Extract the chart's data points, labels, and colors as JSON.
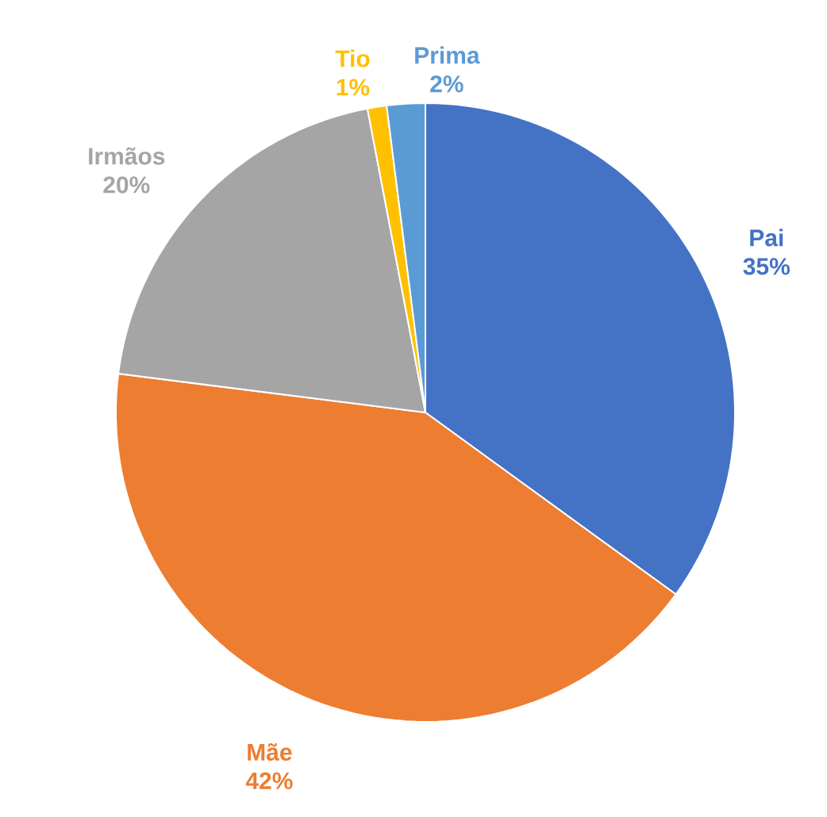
{
  "chart_data": {
    "type": "pie",
    "categories": [
      "Pai",
      "Mãe",
      "Irmãos",
      "Tio",
      "Prima"
    ],
    "values": [
      35,
      42,
      20,
      1,
      2
    ],
    "value_labels": [
      "35%",
      "42%",
      "20%",
      "1%",
      "2%"
    ],
    "colors": [
      "#4472c4",
      "#ed7d31",
      "#a5a5a5",
      "#ffc000",
      "#5b9bd5"
    ]
  }
}
